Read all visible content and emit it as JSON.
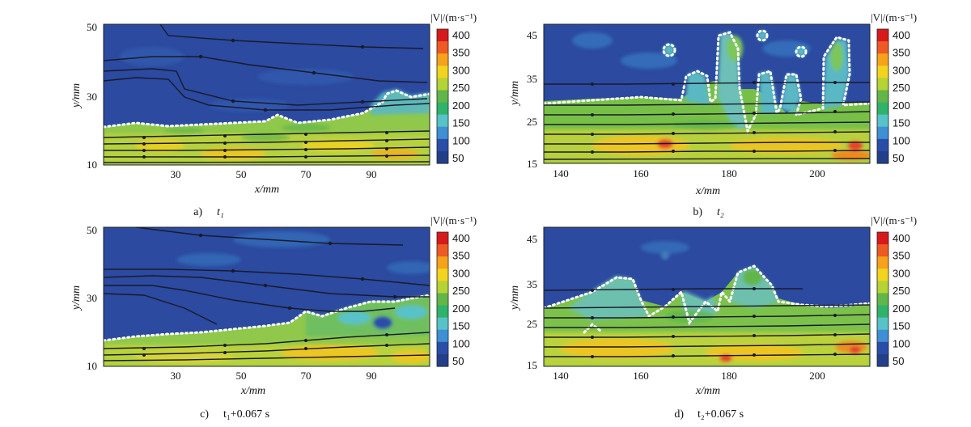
{
  "colorbar": {
    "title": "|V|/(m·s⁻¹)",
    "ticks": [
      "400",
      "350",
      "300",
      "250",
      "200",
      "150",
      "100",
      "50"
    ],
    "colors": [
      "#d7191c",
      "#ee5a24",
      "#f6a21a",
      "#f2d41e",
      "#b5d334",
      "#62b649",
      "#2fb36a",
      "#58c2c9",
      "#3e8fd4",
      "#2a4ea8",
      "#243f8a"
    ]
  },
  "chart_data": [
    {
      "type": "heatmap",
      "caption_letter": "a)",
      "caption_time": "t₁",
      "xlabel": "x/mm",
      "ylabel": "y/mm",
      "xlim": [
        0,
        100
      ],
      "ylim": [
        10,
        50
      ],
      "xticks": [
        "30",
        "50",
        "70",
        "90"
      ],
      "yticks": [
        "10",
        "30",
        "50"
      ],
      "colorbar_range": [
        50,
        400
      ],
      "interface_y": [
        [
          0,
          20
        ],
        [
          10,
          21
        ],
        [
          20,
          20
        ],
        [
          30,
          20.5
        ],
        [
          40,
          21
        ],
        [
          50,
          21.5
        ],
        [
          55,
          24
        ],
        [
          60,
          22
        ],
        [
          70,
          22
        ],
        [
          80,
          24
        ],
        [
          83,
          25
        ],
        [
          85,
          26
        ],
        [
          86,
          28.5
        ],
        [
          90,
          29
        ],
        [
          95,
          28
        ],
        [
          100,
          28
        ]
      ],
      "lower_region_velocity_range": [
        200,
        350
      ],
      "upper_region_velocity": 80
    },
    {
      "type": "heatmap",
      "caption_letter": "b)",
      "caption_time": "t₂",
      "xlabel": "x/mm",
      "ylabel": "y/mm",
      "xlim": [
        136,
        210
      ],
      "ylim": [
        15,
        47
      ],
      "xticks": [
        "140",
        "160",
        "180",
        "200"
      ],
      "yticks": [
        "15",
        "25",
        "35",
        "45"
      ],
      "colorbar_range": [
        50,
        400
      ],
      "lower_region_velocity_range": [
        200,
        400
      ],
      "upper_region_velocity": 80
    },
    {
      "type": "heatmap",
      "caption_letter": "c)",
      "caption_time": "t₁+0.067 s",
      "xlabel": "x/mm",
      "ylabel": "y/mm",
      "xlim": [
        0,
        100
      ],
      "ylim": [
        10,
        50
      ],
      "xticks": [
        "30",
        "50",
        "70",
        "90"
      ],
      "yticks": [
        "10",
        "30",
        "50"
      ],
      "colorbar_range": [
        50,
        400
      ],
      "interface_y": [
        [
          0,
          17
        ],
        [
          10,
          18
        ],
        [
          20,
          19
        ],
        [
          30,
          20
        ],
        [
          40,
          21
        ],
        [
          50,
          22
        ],
        [
          60,
          24
        ],
        [
          65,
          25
        ],
        [
          70,
          25
        ],
        [
          80,
          27
        ],
        [
          85,
          28
        ],
        [
          90,
          29
        ],
        [
          95,
          29
        ],
        [
          100,
          30
        ]
      ],
      "lower_region_velocity_range": [
        200,
        350
      ],
      "upper_region_velocity": 80
    },
    {
      "type": "heatmap",
      "caption_letter": "d)",
      "caption_time": "t₂+0.067 s",
      "xlabel": "x/mm",
      "ylabel": "y/mm",
      "xlim": [
        136,
        210
      ],
      "ylim": [
        15,
        47
      ],
      "xticks": [
        "140",
        "160",
        "180",
        "200"
      ],
      "yticks": [
        "15",
        "25",
        "35",
        "45"
      ],
      "colorbar_range": [
        50,
        400
      ],
      "lower_region_velocity_range": [
        200,
        400
      ],
      "upper_region_velocity": 80
    }
  ]
}
